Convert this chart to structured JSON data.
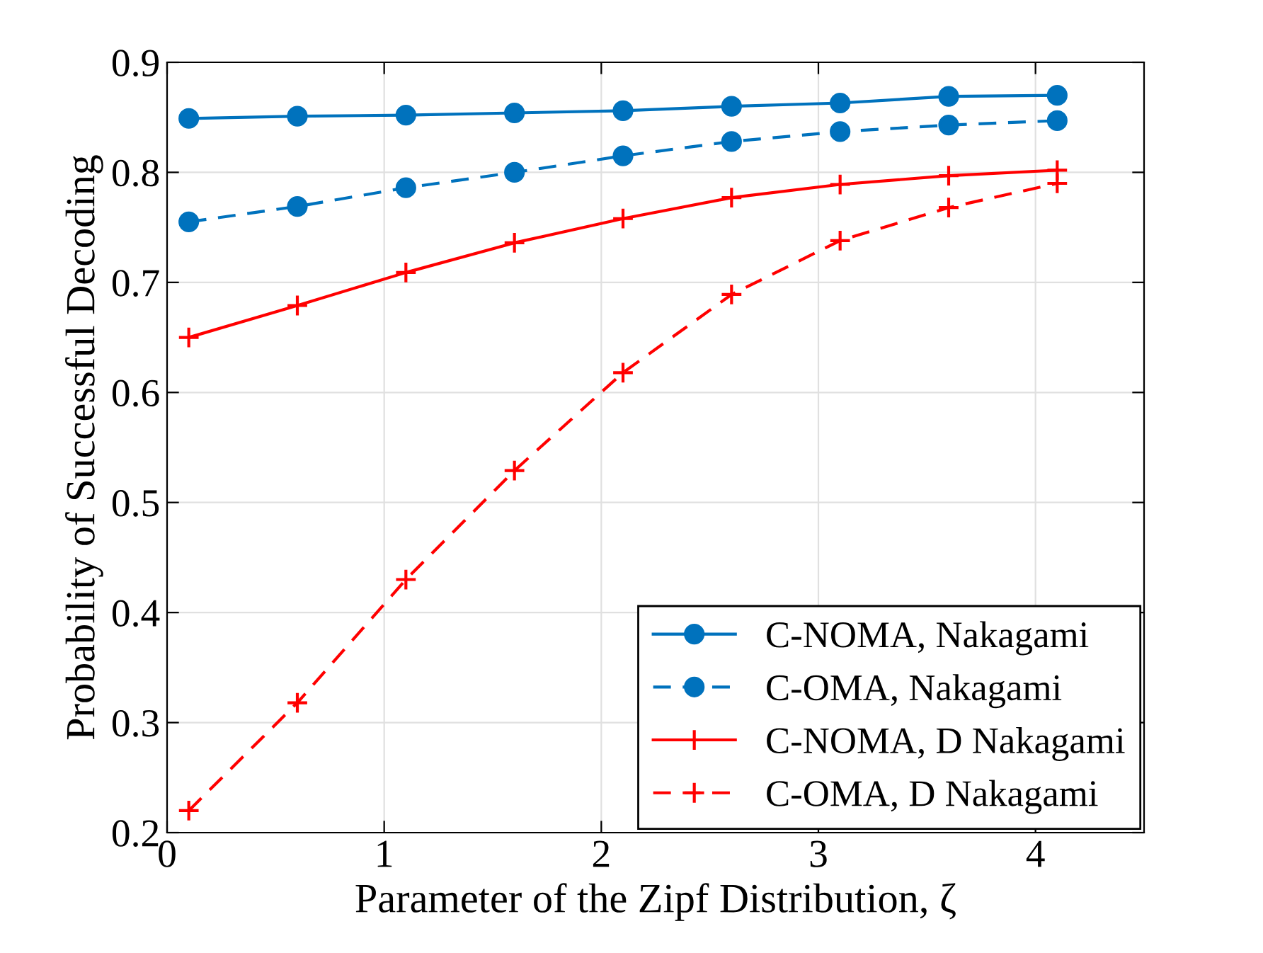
{
  "chart_data": {
    "type": "line",
    "xlabel": "Parameter of the Zipf Distribution, ζ",
    "ylabel": "Probability of Successful Decoding",
    "x": [
      0.1,
      0.6,
      1.1,
      1.6,
      2.1,
      2.6,
      3.1,
      3.6,
      4.1
    ],
    "series": [
      {
        "name": "C-NOMA, Nakagami",
        "color": "#0072bd",
        "marker": "circle",
        "line_style": "solid",
        "values": [
          0.849,
          0.851,
          0.852,
          0.854,
          0.856,
          0.86,
          0.863,
          0.869,
          0.87
        ]
      },
      {
        "name": "C-OMA, Nakagami",
        "color": "#0072bd",
        "marker": "circle",
        "line_style": "dashed",
        "values": [
          0.755,
          0.769,
          0.786,
          0.8,
          0.815,
          0.828,
          0.837,
          0.843,
          0.847
        ]
      },
      {
        "name": "C-NOMA, D Nakagami",
        "color": "#ff0000",
        "marker": "cross",
        "line_style": "solid",
        "values": [
          0.65,
          0.679,
          0.709,
          0.736,
          0.758,
          0.777,
          0.789,
          0.797,
          0.802
        ]
      },
      {
        "name": "C-OMA, D Nakagami",
        "color": "#ff0000",
        "marker": "cross",
        "line_style": "dashed",
        "values": [
          0.22,
          0.318,
          0.43,
          0.529,
          0.618,
          0.689,
          0.738,
          0.768,
          0.79
        ]
      }
    ],
    "xlim": [
      0,
      4.5
    ],
    "xticks": [
      0,
      1,
      2,
      3,
      4
    ],
    "ylim": [
      0.2,
      0.9
    ],
    "yticks": [
      0.2,
      0.3,
      0.4,
      0.5,
      0.6,
      0.7,
      0.8,
      0.9
    ],
    "grid": true,
    "legend": "bottom right"
  }
}
